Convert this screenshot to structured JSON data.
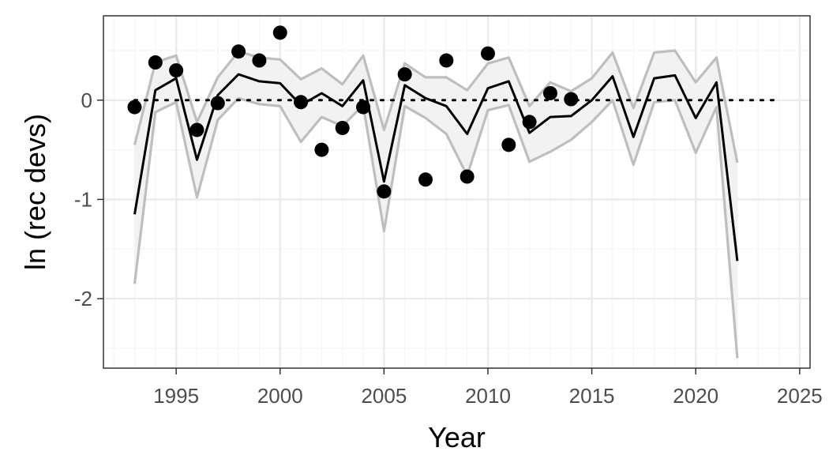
{
  "chart_data": {
    "type": "line",
    "title": "",
    "xlabel": "Year",
    "ylabel": "ln (rec devs)",
    "xlim": [
      1991.5,
      2025.5
    ],
    "ylim": [
      -2.7,
      0.85
    ],
    "x_ticks": [
      1995,
      2000,
      2005,
      2010,
      2015,
      2020,
      2025
    ],
    "y_ticks": [
      -2,
      -1,
      0
    ],
    "grid": true,
    "reference_line": {
      "y": 0,
      "x_from": 1993,
      "x_to": 2024,
      "style": "dotted"
    },
    "series": [
      {
        "kind": "line",
        "x": [
          1993,
          1994,
          1995,
          1996,
          1997,
          1998,
          1999,
          2000,
          2001,
          2002,
          2003,
          2004,
          2005,
          2006,
          2007,
          2008,
          2009,
          2010,
          2011,
          2012,
          2013,
          2014,
          2015,
          2016,
          2017,
          2018,
          2019,
          2020,
          2021,
          2022
        ],
        "values": [
          -1.15,
          0.1,
          0.22,
          -0.6,
          0.05,
          0.26,
          0.19,
          0.17,
          -0.05,
          0.07,
          -0.06,
          0.2,
          -0.82,
          0.15,
          0.02,
          -0.06,
          -0.34,
          0.12,
          0.19,
          -0.33,
          -0.17,
          -0.16,
          0.0,
          0.24,
          -0.37,
          0.22,
          0.25,
          -0.18,
          0.18,
          -1.62
        ]
      },
      {
        "kind": "band",
        "x": [
          1993,
          1994,
          1995,
          1996,
          1997,
          1998,
          1999,
          2000,
          2001,
          2002,
          2003,
          2004,
          2005,
          2006,
          2007,
          2008,
          2009,
          2010,
          2011,
          2012,
          2013,
          2014,
          2015,
          2016,
          2017,
          2018,
          2019,
          2020,
          2021,
          2022
        ],
        "upper": [
          -0.45,
          0.38,
          0.45,
          -0.22,
          0.23,
          0.49,
          0.43,
          0.41,
          0.21,
          0.32,
          0.16,
          0.45,
          -0.3,
          0.37,
          0.23,
          0.23,
          0.1,
          0.37,
          0.43,
          -0.06,
          0.18,
          0.09,
          0.22,
          0.48,
          -0.08,
          0.48,
          0.5,
          0.18,
          0.43,
          -0.63
        ],
        "lower": [
          -1.85,
          -0.12,
          -0.02,
          -0.98,
          -0.2,
          0.02,
          -0.04,
          -0.06,
          -0.42,
          -0.17,
          -0.26,
          -0.05,
          -1.32,
          -0.06,
          -0.18,
          -0.34,
          -0.76,
          -0.1,
          -0.05,
          -0.62,
          -0.52,
          -0.4,
          -0.22,
          0.0,
          -0.65,
          -0.02,
          0.0,
          -0.53,
          -0.07,
          -2.6
        ]
      },
      {
        "kind": "points",
        "x": [
          1993,
          1994,
          1995,
          1996,
          1997,
          1998,
          1999,
          2000,
          2001,
          2002,
          2003,
          2004,
          2005,
          2006,
          2007,
          2008,
          2009,
          2010,
          2011,
          2012,
          2013,
          2014
        ],
        "values": [
          -0.07,
          0.38,
          0.3,
          -0.3,
          -0.03,
          0.49,
          0.4,
          0.68,
          -0.02,
          -0.5,
          -0.28,
          -0.07,
          -0.92,
          0.26,
          -0.8,
          0.4,
          -0.77,
          0.47,
          -0.45,
          -0.22,
          0.07,
          0.01
        ]
      }
    ],
    "colors": {
      "background": "#ffffff",
      "panel_border": "#333333",
      "grid_major": "#ebebeb",
      "grid_minor": "#f5f5f5",
      "band_fill": "#f2f2f2",
      "band_edge": "#bebebe",
      "main_line": "#000000",
      "points": "#000000",
      "reference": "#000000"
    }
  }
}
